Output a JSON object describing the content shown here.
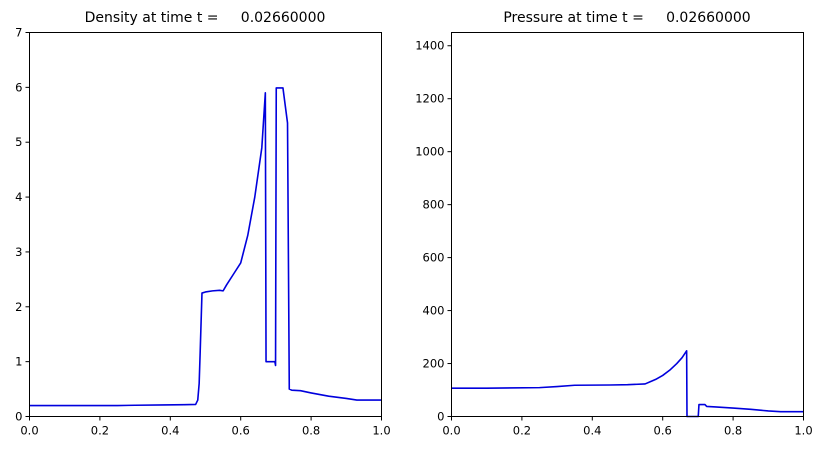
{
  "chart_data": [
    {
      "type": "line",
      "title": "Density at time t =     0.02660000",
      "xlabel": "",
      "ylabel": "",
      "xlim": [
        0,
        1
      ],
      "ylim": [
        0,
        7
      ],
      "xticks": [
        0,
        0.2,
        0.4,
        0.6,
        0.8,
        1
      ],
      "xtick_labels": [
        "0.0",
        "0.2",
        "0.4",
        "0.6",
        "0.8",
        "1.0"
      ],
      "yticks": [
        0,
        1,
        2,
        3,
        4,
        5,
        6,
        7
      ],
      "ytick_labels": [
        "0",
        "1",
        "2",
        "3",
        "4",
        "5",
        "6",
        "7"
      ],
      "grid": false,
      "color": "#0000dd",
      "x": [
        0.0,
        0.1,
        0.2,
        0.25,
        0.3,
        0.38,
        0.44,
        0.472,
        0.478,
        0.482,
        0.485,
        0.49,
        0.5,
        0.52,
        0.54,
        0.55,
        0.56,
        0.58,
        0.6,
        0.62,
        0.64,
        0.66,
        0.67,
        0.672,
        0.69,
        0.697,
        0.699,
        0.701,
        0.703,
        0.72,
        0.733,
        0.738,
        0.745,
        0.77,
        0.8,
        0.85,
        0.9,
        0.93,
        1.0
      ],
      "y": [
        0.2,
        0.2,
        0.2,
        0.2,
        0.205,
        0.21,
        0.215,
        0.22,
        0.3,
        0.6,
        1.2,
        2.25,
        2.27,
        2.29,
        2.3,
        2.29,
        2.4,
        2.6,
        2.8,
        3.3,
        4.0,
        4.9,
        5.9,
        1.0,
        1.0,
        1.0,
        0.93,
        5.99,
        5.99,
        5.99,
        5.35,
        0.5,
        0.48,
        0.47,
        0.43,
        0.37,
        0.33,
        0.3,
        0.3
      ]
    },
    {
      "type": "line",
      "title": "Pressure at time t =     0.02660000",
      "xlabel": "",
      "ylabel": "",
      "xlim": [
        0,
        1
      ],
      "ylim": [
        0,
        1450
      ],
      "xticks": [
        0,
        0.2,
        0.4,
        0.6,
        0.8,
        1
      ],
      "xtick_labels": [
        "0.0",
        "0.2",
        "0.4",
        "0.6",
        "0.8",
        "1.0"
      ],
      "yticks": [
        0,
        200,
        400,
        600,
        800,
        1000,
        1200,
        1400
      ],
      "ytick_labels": [
        "0",
        "200",
        "400",
        "600",
        "800",
        "1000",
        "1200",
        "1400"
      ],
      "grid": false,
      "color": "#0000dd",
      "x": [
        0.0,
        0.1,
        0.25,
        0.3,
        0.35,
        0.45,
        0.5,
        0.55,
        0.58,
        0.6,
        0.62,
        0.64,
        0.655,
        0.668,
        0.669,
        0.69,
        0.701,
        0.703,
        0.72,
        0.725,
        0.75,
        0.8,
        0.85,
        0.9,
        0.935,
        1.0
      ],
      "y": [
        107,
        107,
        109,
        113,
        118,
        119,
        120,
        123,
        140,
        155,
        175,
        200,
        222,
        248,
        0,
        0,
        0,
        45,
        45,
        38,
        36,
        32,
        27,
        21,
        18,
        18
      ]
    }
  ]
}
